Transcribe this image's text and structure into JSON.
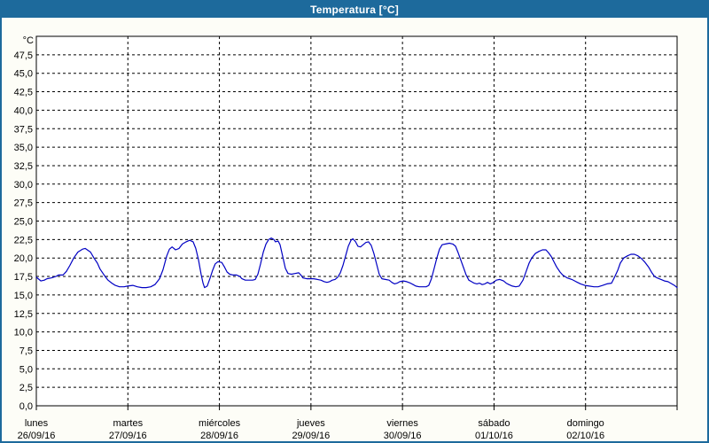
{
  "window": {
    "title": "Temperatura [°C]"
  },
  "colors": {
    "titlebar": "#1d6a9c",
    "window_border": "#1d6a9c",
    "plot_background": "#ffffff",
    "plot_border": "#000000",
    "grid": "#000000",
    "line": "#0000c3",
    "label_text": "#000000"
  },
  "chart_data": {
    "type": "line",
    "title": "Temperatura [°C]",
    "unit_label": "°C",
    "xlabel": "",
    "ylabel": "°C",
    "ylim": [
      0,
      50
    ],
    "xlim_hours": [
      0,
      168
    ],
    "grid": true,
    "legend": "none",
    "y_ticks": [
      0,
      2.5,
      5,
      7.5,
      10,
      12.5,
      15,
      17.5,
      20,
      22.5,
      25,
      27.5,
      30,
      32.5,
      35,
      37.5,
      40,
      42.5,
      45,
      47.5
    ],
    "y_tick_labels": [
      "0,0",
      "2,5",
      "5,0",
      "7,5",
      "10,0",
      "12,5",
      "15,0",
      "17,5",
      "20,0",
      "22,5",
      "25,0",
      "27,5",
      "30,0",
      "32,5",
      "35,0",
      "37,5",
      "40,0",
      "42,5",
      "45,0",
      "47,5"
    ],
    "x_ticks_hours": [
      0,
      24,
      48,
      72,
      96,
      120,
      144,
      168
    ],
    "days": [
      {
        "name": "lunes",
        "date": "26/09/16"
      },
      {
        "name": "martes",
        "date": "27/09/16"
      },
      {
        "name": "miércoles",
        "date": "28/09/16"
      },
      {
        "name": "jueves",
        "date": "29/09/16"
      },
      {
        "name": "viernes",
        "date": "30/09/16"
      },
      {
        "name": "sábado",
        "date": "01/10/16"
      },
      {
        "name": "domingo",
        "date": "02/10/16"
      }
    ],
    "series": [
      {
        "name": "Temperatura",
        "color": "#0000c3",
        "points": [
          [
            0,
            17.4
          ],
          [
            1.2,
            16.9
          ],
          [
            2.1,
            17.0
          ],
          [
            2.8,
            17.2
          ],
          [
            3.9,
            17.3
          ],
          [
            5.1,
            17.5
          ],
          [
            5.8,
            17.7
          ],
          [
            7,
            17.7
          ],
          [
            7.9,
            18.2
          ],
          [
            8.8,
            19.0
          ],
          [
            9.8,
            20.0
          ],
          [
            10.9,
            20.8
          ],
          [
            12.1,
            21.2
          ],
          [
            12.8,
            21.3
          ],
          [
            14.2,
            20.8
          ],
          [
            15.1,
            20.0
          ],
          [
            16,
            19.3
          ],
          [
            16.7,
            18.5
          ],
          [
            17.9,
            17.6
          ],
          [
            18.8,
            17.0
          ],
          [
            19.8,
            16.6
          ],
          [
            20.7,
            16.3
          ],
          [
            21.8,
            16.1
          ],
          [
            23,
            16.1
          ],
          [
            23.9,
            16.2
          ],
          [
            25.3,
            16.3
          ],
          [
            26.5,
            16.1
          ],
          [
            27.7,
            16.0
          ],
          [
            28.8,
            16.0
          ],
          [
            30,
            16.1
          ],
          [
            31.1,
            16.4
          ],
          [
            32.3,
            17.2
          ],
          [
            33.2,
            18.4
          ],
          [
            34.2,
            20.3
          ],
          [
            34.9,
            21.2
          ],
          [
            35.6,
            21.5
          ],
          [
            36.5,
            21.1
          ],
          [
            37.4,
            21.3
          ],
          [
            38.3,
            21.9
          ],
          [
            39.3,
            22.2
          ],
          [
            40.2,
            22.4
          ],
          [
            41.1,
            22.2
          ],
          [
            41.8,
            21.3
          ],
          [
            42.5,
            19.8
          ],
          [
            43.2,
            17.8
          ],
          [
            43.7,
            16.6
          ],
          [
            44.1,
            16.0
          ],
          [
            44.8,
            16.2
          ],
          [
            45.5,
            17.2
          ],
          [
            46.2,
            18.3
          ],
          [
            46.9,
            19.2
          ],
          [
            47.6,
            19.5
          ],
          [
            48.6,
            19.4
          ],
          [
            49.3,
            18.8
          ],
          [
            50,
            18.1
          ],
          [
            50.7,
            17.8
          ],
          [
            51.6,
            17.7
          ],
          [
            52.5,
            17.7
          ],
          [
            53.4,
            17.5
          ],
          [
            53.9,
            17.2
          ],
          [
            54.8,
            17.0
          ],
          [
            55.8,
            17.0
          ],
          [
            56.7,
            17.0
          ],
          [
            57.4,
            17.1
          ],
          [
            58.1,
            17.8
          ],
          [
            58.8,
            19.2
          ],
          [
            59.5,
            20.8
          ],
          [
            60.2,
            21.9
          ],
          [
            60.9,
            22.5
          ],
          [
            61.6,
            22.7
          ],
          [
            62.3,
            22.5
          ],
          [
            62.7,
            22.2
          ],
          [
            63.4,
            22.3
          ],
          [
            63.9,
            21.8
          ],
          [
            64.6,
            20.2
          ],
          [
            65.3,
            18.6
          ],
          [
            66,
            17.9
          ],
          [
            66.9,
            17.8
          ],
          [
            67.8,
            17.9
          ],
          [
            68.8,
            18.0
          ],
          [
            69.5,
            17.6
          ],
          [
            69.9,
            17.3
          ],
          [
            70.9,
            17.2
          ],
          [
            71.8,
            17.2
          ],
          [
            72.7,
            17.2
          ],
          [
            73.7,
            17.1
          ],
          [
            74.6,
            17.0
          ],
          [
            75.5,
            16.8
          ],
          [
            76.2,
            16.7
          ],
          [
            76.9,
            16.8
          ],
          [
            77.6,
            17.0
          ],
          [
            78.3,
            17.1
          ],
          [
            79,
            17.4
          ],
          [
            79.7,
            18.0
          ],
          [
            80.4,
            19.0
          ],
          [
            81.1,
            20.3
          ],
          [
            81.8,
            21.6
          ],
          [
            82.5,
            22.4
          ],
          [
            83,
            22.6
          ],
          [
            83.7,
            22.2
          ],
          [
            84.3,
            21.6
          ],
          [
            85,
            21.5
          ],
          [
            85.7,
            21.8
          ],
          [
            86.4,
            22.1
          ],
          [
            87.1,
            22.2
          ],
          [
            87.8,
            21.7
          ],
          [
            88.5,
            20.6
          ],
          [
            89.2,
            19.2
          ],
          [
            89.9,
            17.8
          ],
          [
            90.6,
            17.2
          ],
          [
            91.5,
            17.1
          ],
          [
            92.5,
            17.0
          ],
          [
            93.2,
            16.7
          ],
          [
            93.9,
            16.5
          ],
          [
            94.6,
            16.6
          ],
          [
            95.3,
            16.8
          ],
          [
            96.2,
            16.9
          ],
          [
            97.1,
            16.8
          ],
          [
            98.1,
            16.6
          ],
          [
            98.8,
            16.4
          ],
          [
            99.5,
            16.2
          ],
          [
            100.4,
            16.1
          ],
          [
            101.3,
            16.1
          ],
          [
            102.2,
            16.1
          ],
          [
            102.9,
            16.3
          ],
          [
            103.6,
            17.2
          ],
          [
            104.3,
            18.6
          ],
          [
            105,
            20.0
          ],
          [
            105.7,
            21.2
          ],
          [
            106.4,
            21.8
          ],
          [
            107.3,
            21.9
          ],
          [
            108.3,
            22.0
          ],
          [
            109.2,
            21.9
          ],
          [
            109.9,
            21.6
          ],
          [
            110.6,
            20.7
          ],
          [
            111.3,
            19.7
          ],
          [
            112,
            18.7
          ],
          [
            112.7,
            17.7
          ],
          [
            113.4,
            17.0
          ],
          [
            114.1,
            16.8
          ],
          [
            114.8,
            16.6
          ],
          [
            115.5,
            16.5
          ],
          [
            116.2,
            16.6
          ],
          [
            116.9,
            16.4
          ],
          [
            117.6,
            16.5
          ],
          [
            118.3,
            16.7
          ],
          [
            119,
            16.5
          ],
          [
            119.9,
            16.7
          ],
          [
            120.6,
            17.0
          ],
          [
            121.5,
            17.1
          ],
          [
            122.5,
            16.9
          ],
          [
            123.2,
            16.6
          ],
          [
            123.9,
            16.4
          ],
          [
            124.8,
            16.2
          ],
          [
            125.7,
            16.1
          ],
          [
            126.6,
            16.2
          ],
          [
            127.6,
            17.0
          ],
          [
            128.3,
            18.0
          ],
          [
            129.2,
            19.3
          ],
          [
            129.9,
            20.0
          ],
          [
            130.8,
            20.6
          ],
          [
            131.8,
            20.9
          ],
          [
            132.7,
            21.1
          ],
          [
            133.6,
            21.1
          ],
          [
            134.3,
            20.7
          ],
          [
            135,
            20.2
          ],
          [
            135.7,
            19.5
          ],
          [
            136.4,
            18.8
          ],
          [
            137.3,
            18.1
          ],
          [
            138,
            17.7
          ],
          [
            139.2,
            17.3
          ],
          [
            140.4,
            17.1
          ],
          [
            141.5,
            16.8
          ],
          [
            142.7,
            16.5
          ],
          [
            143.8,
            16.3
          ],
          [
            145,
            16.2
          ],
          [
            146.2,
            16.1
          ],
          [
            147.3,
            16.1
          ],
          [
            148.5,
            16.3
          ],
          [
            149.6,
            16.5
          ],
          [
            150.8,
            16.6
          ],
          [
            151.5,
            17.3
          ],
          [
            152.4,
            18.3
          ],
          [
            153.1,
            19.3
          ],
          [
            154,
            20.0
          ],
          [
            155,
            20.3
          ],
          [
            155.9,
            20.5
          ],
          [
            156.8,
            20.5
          ],
          [
            157.7,
            20.3
          ],
          [
            158.7,
            19.9
          ],
          [
            159.6,
            19.4
          ],
          [
            160.5,
            18.8
          ],
          [
            161.4,
            18.0
          ],
          [
            162.1,
            17.5
          ],
          [
            162.8,
            17.3
          ],
          [
            163.8,
            17.1
          ],
          [
            164.7,
            16.9
          ],
          [
            165.6,
            16.8
          ],
          [
            166.6,
            16.5
          ],
          [
            167.3,
            16.3
          ],
          [
            168,
            16.0
          ]
        ]
      }
    ]
  }
}
